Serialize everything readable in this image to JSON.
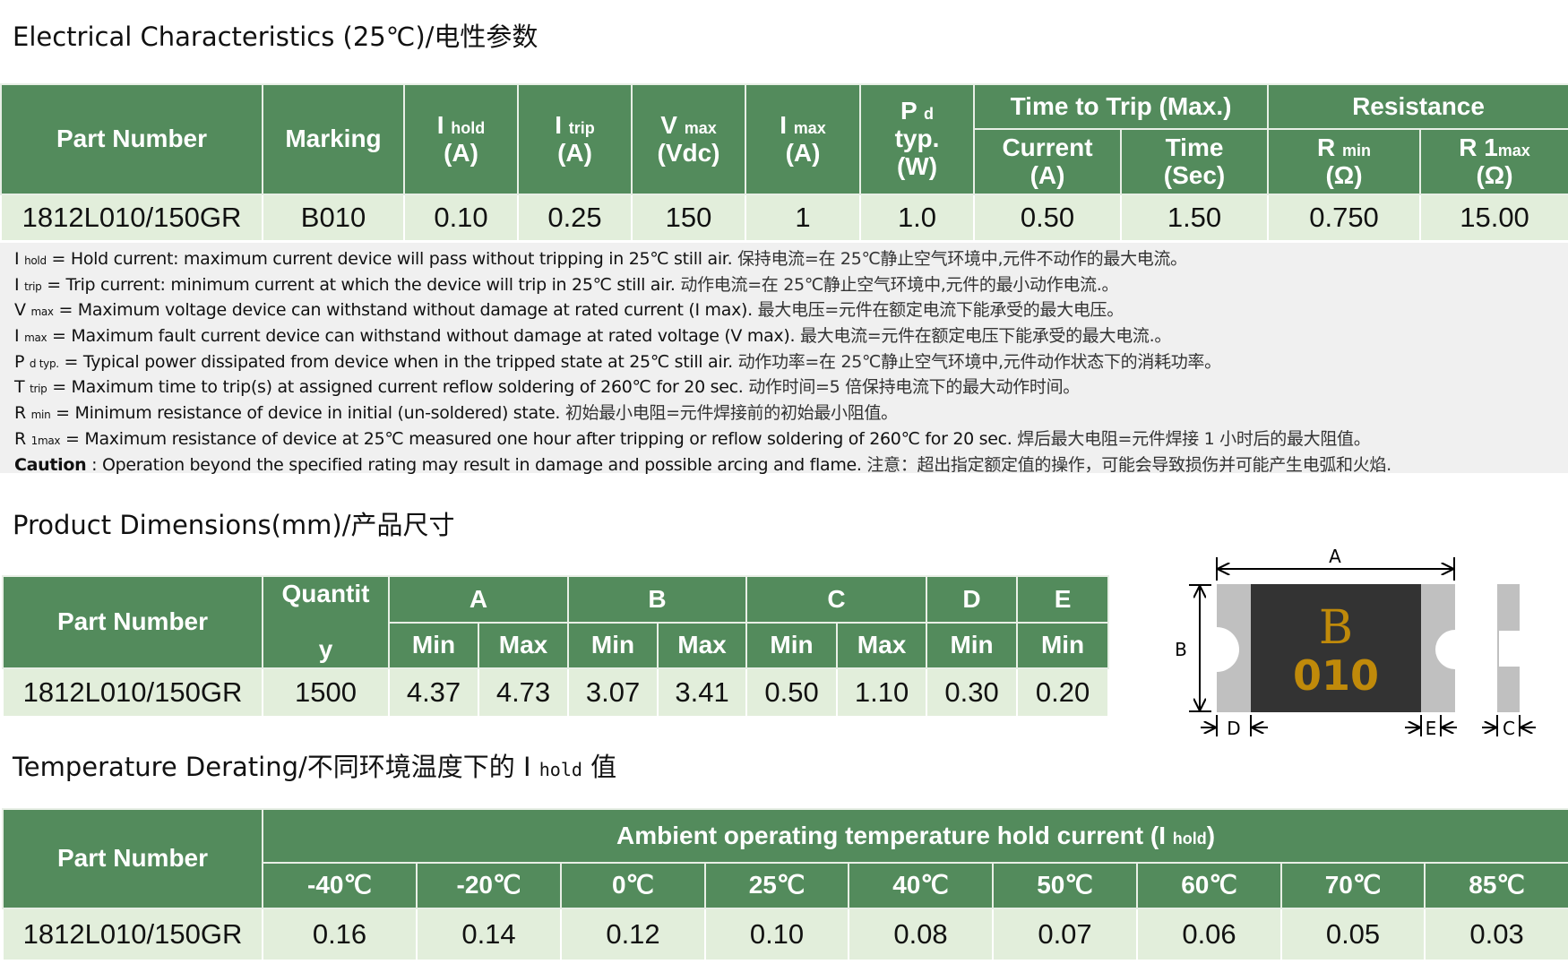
{
  "section1": {
    "title": "Electrical Characteristics (25℃)/电性参数",
    "headers": {
      "part_number": "Part Number",
      "marking": "Marking",
      "ihold": {
        "sym": "I",
        "sub": "hold",
        "unit": "(A)"
      },
      "itrip": {
        "sym": "I",
        "sub": "trip",
        "unit": "(A)"
      },
      "vmax": {
        "sym": "V",
        "sub": "max",
        "unit": "(Vdc)"
      },
      "imax": {
        "sym": "I",
        "sub": "max",
        "unit": "(A)"
      },
      "pd": {
        "sym": "P",
        "sub": "d",
        "typ": "typ.",
        "unit": "(W)"
      },
      "ttt": "Time to Trip (Max.)",
      "current": "Current",
      "current_unit": "(A)",
      "time": "Time",
      "time_unit": "(Sec)",
      "resistance": "Resistance",
      "rmin": {
        "sym": "R",
        "sub": "min",
        "unit": "(Ω)"
      },
      "r1max": {
        "sym": "R 1",
        "sub": "max",
        "unit": "(Ω)"
      }
    },
    "row": {
      "part": "1812L010/150GR",
      "marking": "B010",
      "ihold": "0.10",
      "itrip": "0.25",
      "vmax": "150",
      "imax": "1",
      "pd": "1.0",
      "current": "0.50",
      "time": "1.50",
      "rmin": "0.750",
      "r1max": "15.00"
    }
  },
  "notes": [
    {
      "sym": "I",
      "sub": "hold",
      "en": " = Hold current: maximum current device will pass without tripping in 25℃  still air. ",
      "zh": "保持电流=在 25℃静止空气环境中,元件不动作的最大电流。"
    },
    {
      "sym": "I",
      "sub": "trip",
      "en": " = Trip current: minimum current at which the device will trip in 25℃  still air. ",
      "zh": "动作电流=在 25℃静止空气环境中,元件的最小动作电流.。"
    },
    {
      "sym": "V",
      "sub": "max",
      "en": " = Maximum voltage device can withstand without damage at rated current (I max). ",
      "zh": "最大电压=元件在额定电流下能承受的最大电压。"
    },
    {
      "sym": "I",
      "sub": "max",
      "en": " = Maximum fault current device can withstand without damage at rated voltage (V max). ",
      "zh": "最大电流=元件在额定电压下能承受的最大电流.。"
    },
    {
      "sym": "P",
      "sub": "d typ.",
      "en": " = Typical power dissipated from device when in the tripped state at 25℃  still air. ",
      "zh": "动作功率=在 25℃静止空气环境中,元件动作状态下的消耗功率。"
    },
    {
      "sym": "T",
      "sub": "trip",
      "en": " = Maximum time to trip(s) at assigned current reflow soldering of 260℃  for 20 sec. ",
      "zh": "动作时间=5 倍保持电流下的最大动作时间。"
    },
    {
      "sym": "R",
      "sub": "min",
      "en": " = Minimum resistance of device in initial (un-soldered) state. ",
      "zh": "初始最小电阻=元件焊接前的初始最小阻值。"
    },
    {
      "sym": "R",
      "sub": "1max",
      "en": " = Maximum resistance of device at 25℃  measured one hour after tripping or reflow soldering of 260℃  for 20 sec. ",
      "zh": "焊后最大电阻=元件焊接 1 小时后的最大阻值。"
    },
    {
      "sym": "Caution",
      "sub": "",
      "en": " : Operation beyond the specified rating may result in damage and possible arcing and flame. ",
      "zh": "注意：超出指定额定值的操作，可能会导致损伤并可能产生电弧和火焰."
    }
  ],
  "section2": {
    "title": "Product Dimensions(mm)/产品尺寸",
    "headers": {
      "part_number": "Part Number",
      "quantity_1": "Quantit",
      "quantity_2": "y",
      "A": "A",
      "B": "B",
      "C": "C",
      "D": "D",
      "E": "E",
      "min": "Min",
      "max": "Max"
    },
    "row": {
      "part": "1812L010/150GR",
      "quantity": "1500",
      "a_min": "4.37",
      "a_max": "4.73",
      "b_min": "3.07",
      "b_max": "3.41",
      "c_min": "0.50",
      "c_max": "1.10",
      "d_min": "0.30",
      "e_min": "0.20"
    },
    "diagram": {
      "A": "A",
      "B": "B",
      "C": "C",
      "D": "D",
      "E": "E",
      "marking_logo": "B",
      "marking_code": "010",
      "body_color": "#333333",
      "terminal_color": "#c0c0c0",
      "marking_color": "#c08a0a"
    }
  },
  "section3": {
    "title_main": "Temperature Derating/不同环境温度下的 I ",
    "title_sub": "hold",
    "title_end": " 值",
    "headers": {
      "part_number": "Part Number",
      "ambient": "Ambient operating temperature hold current (I ",
      "ambient_sub": "hold",
      "ambient_end": ")",
      "temps": [
        "-40℃",
        "-20℃",
        "0℃",
        "25℃",
        "40℃",
        "50℃",
        "60℃",
        "70℃",
        "85℃"
      ]
    },
    "row": {
      "part": "1812L010/150GR",
      "values": [
        "0.16",
        "0.14",
        "0.12",
        "0.10",
        "0.08",
        "0.07",
        "0.06",
        "0.05",
        "0.03"
      ]
    }
  },
  "colors": {
    "header_green": "#538b5c",
    "row_green": "#e2eedb",
    "notes_bg": "#f0f0f0"
  }
}
